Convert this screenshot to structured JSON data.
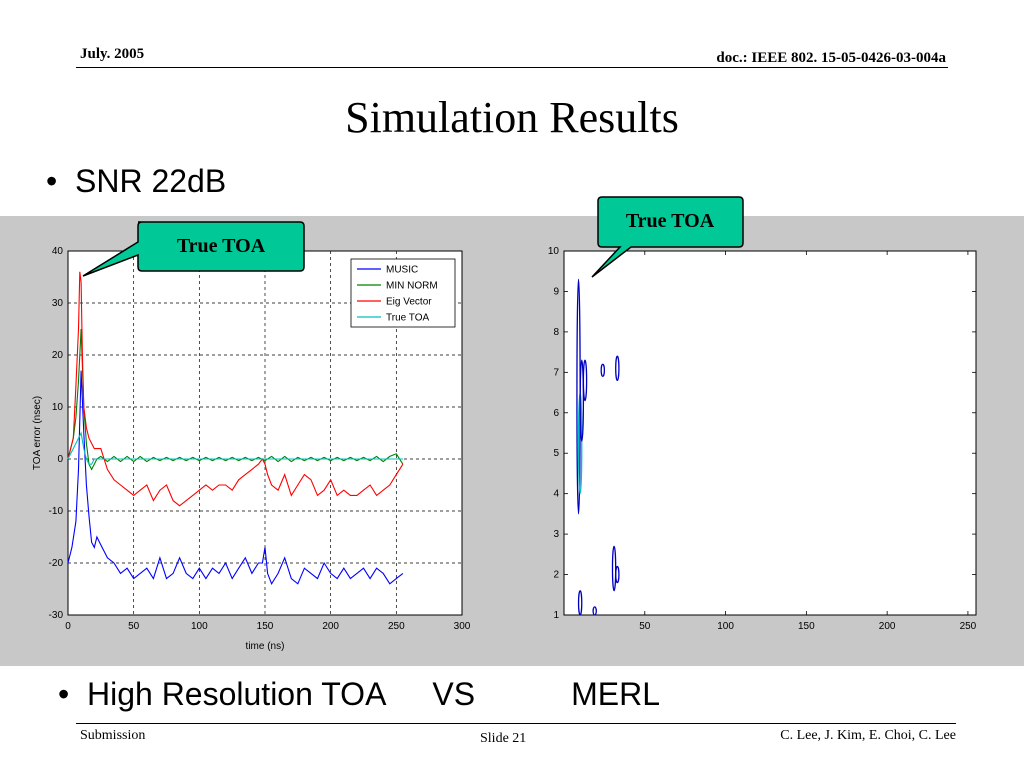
{
  "header": {
    "date": "July. 2005",
    "doc_id": "doc.: IEEE 802. 15-05-0426-03-004a"
  },
  "title": "Simulation Results",
  "bullets": [
    {
      "text": "SNR 22dB"
    },
    {
      "part1": "High Resolution TOA",
      "part2": "VS",
      "part3": "MERL"
    }
  ],
  "callouts": [
    {
      "text": "True TOA"
    },
    {
      "text": "True TOA"
    }
  ],
  "footer": {
    "left": "Submission",
    "center": "Slide 21",
    "right": "C. Lee, J. Kim, E. Choi, C. Lee"
  },
  "chart_data": [
    {
      "type": "line",
      "title": "",
      "xlabel": "time (ns)",
      "ylabel": "TOA error (nsec)",
      "xlim": [
        0,
        300
      ],
      "ylim": [
        -30,
        40
      ],
      "xticks": [
        0,
        50,
        100,
        150,
        200,
        250,
        300
      ],
      "yticks": [
        40,
        30,
        20,
        10,
        0,
        -10,
        -20,
        -30
      ],
      "grid": true,
      "legend_position": "top-right",
      "colors": {
        "MUSIC": "#0000ff",
        "MIN NORM": "#008000",
        "Eig Vector": "#ff0000",
        "True TOA": "#00bfbf"
      },
      "series": [
        {
          "name": "MUSIC",
          "x": [
            0,
            3,
            6,
            8,
            10,
            12,
            14,
            16,
            18,
            20,
            22,
            24,
            26,
            28,
            30,
            35,
            40,
            45,
            50,
            55,
            60,
            65,
            70,
            75,
            80,
            85,
            90,
            95,
            100,
            105,
            110,
            115,
            120,
            125,
            130,
            135,
            140,
            145,
            148,
            150,
            152,
            155,
            160,
            165,
            170,
            175,
            180,
            185,
            190,
            195,
            200,
            205,
            210,
            215,
            220,
            225,
            230,
            235,
            240,
            245,
            250,
            255
          ],
          "y": [
            -20,
            -17,
            -12,
            -2,
            17,
            5,
            -5,
            -11,
            -16,
            -17,
            -15,
            -16,
            -17,
            -18,
            -19,
            -20,
            -22,
            -21,
            -23,
            -22,
            -21,
            -23,
            -19,
            -23,
            -22,
            -19,
            -22,
            -23,
            -21,
            -23,
            -21,
            -22,
            -20,
            -23,
            -21,
            -19,
            -22,
            -20,
            -20,
            -17,
            -22,
            -24,
            -22,
            -19,
            -23,
            -24,
            -21,
            -22,
            -23,
            -20,
            -22,
            -23,
            -21,
            -23,
            -22,
            -21,
            -23,
            -21,
            -22,
            -24,
            -23,
            -22
          ]
        },
        {
          "name": "MIN NORM",
          "x": [
            0,
            2,
            4,
            6,
            8,
            10,
            12,
            14,
            16,
            18,
            20,
            22,
            25,
            30,
            35,
            40,
            45,
            50,
            55,
            60,
            65,
            70,
            75,
            80,
            85,
            90,
            95,
            100,
            105,
            110,
            115,
            120,
            125,
            130,
            135,
            140,
            145,
            150,
            155,
            160,
            165,
            170,
            175,
            180,
            185,
            190,
            195,
            200,
            205,
            210,
            215,
            220,
            225,
            230,
            235,
            240,
            245,
            250,
            255
          ],
          "y": [
            0,
            2,
            4,
            8,
            15,
            25,
            10,
            3,
            -1,
            -2,
            -1,
            0,
            0.5,
            -0.5,
            0.5,
            -0.5,
            0.5,
            -0.5,
            0.5,
            -0.5,
            0.3,
            -0.3,
            0.3,
            -0.3,
            0.3,
            -0.3,
            0.3,
            -0.3,
            0.3,
            -0.3,
            0.3,
            -0.3,
            0.3,
            -0.3,
            0.3,
            -0.3,
            0.3,
            -0.3,
            0.5,
            -0.5,
            0.5,
            -0.5,
            0.3,
            -0.3,
            0.3,
            -0.3,
            0.3,
            -0.3,
            0.3,
            -0.3,
            0.3,
            -0.3,
            0.3,
            -0.3,
            0.5,
            -0.5,
            0.5,
            1,
            -1
          ]
        },
        {
          "name": "Eig Vector",
          "x": [
            0,
            4,
            6,
            8,
            9,
            10,
            11,
            12,
            14,
            16,
            18,
            20,
            25,
            30,
            35,
            40,
            45,
            50,
            55,
            60,
            65,
            70,
            75,
            80,
            85,
            90,
            95,
            100,
            105,
            110,
            115,
            120,
            125,
            130,
            135,
            140,
            145,
            148,
            150,
            152,
            155,
            160,
            165,
            170,
            175,
            180,
            185,
            190,
            195,
            200,
            205,
            210,
            215,
            220,
            225,
            230,
            235,
            240,
            245,
            250,
            255
          ],
          "y": [
            0,
            4,
            14,
            25,
            36,
            34,
            20,
            10,
            6,
            4,
            3,
            2,
            2,
            -2,
            -4,
            -5,
            -6,
            -7,
            -6,
            -5,
            -8,
            -6,
            -5,
            -8,
            -9,
            -8,
            -7,
            -6,
            -5,
            -6,
            -5,
            -5,
            -6,
            -4,
            -3,
            -2,
            -1,
            0,
            -1,
            -3,
            -5,
            -6,
            -3,
            -7,
            -5,
            -3,
            -4,
            -7,
            -6,
            -4,
            -7,
            -6,
            -7,
            -7,
            -6,
            -5,
            -7,
            -6,
            -5,
            -3,
            -1
          ]
        },
        {
          "name": "True TOA",
          "x": [
            0,
            2,
            4,
            6,
            8,
            10,
            12,
            14,
            16,
            18,
            20,
            22,
            25,
            30,
            35,
            40,
            45,
            50,
            55,
            60,
            65,
            70,
            75,
            80,
            85,
            90,
            95,
            100,
            105,
            110,
            115,
            120,
            125,
            130,
            135,
            140,
            145,
            150,
            155,
            160,
            165,
            170,
            175,
            180,
            185,
            190,
            195,
            200,
            205,
            210,
            215,
            220,
            225,
            230,
            235,
            240,
            245,
            250,
            255
          ],
          "y": [
            0,
            1,
            2,
            3,
            4,
            5,
            2,
            0,
            -1,
            -1,
            0,
            0,
            0,
            0,
            0,
            0,
            0,
            0,
            0,
            0,
            0,
            0,
            0,
            0,
            0,
            0,
            0,
            0,
            0,
            0,
            0,
            0,
            0,
            0,
            0,
            0,
            0,
            0,
            0,
            0,
            0,
            0,
            0,
            0,
            0,
            0,
            0,
            0,
            0,
            0,
            0,
            0,
            0,
            0,
            0,
            0,
            0,
            0,
            0
          ]
        }
      ]
    },
    {
      "type": "scatter",
      "title": "",
      "xlim": [
        0,
        255
      ],
      "ylim": [
        1,
        10
      ],
      "xticks": [
        50,
        100,
        150,
        200,
        250
      ],
      "yticks": [
        10,
        9,
        8,
        7,
        6,
        5,
        4,
        3,
        2,
        1
      ],
      "grid": false,
      "blobs": [
        {
          "x": 9,
          "y_from": 3.5,
          "y_to": 9.3,
          "color": "#0000c0"
        },
        {
          "x": 10,
          "y_from": 4.0,
          "y_to": 6.5,
          "color": "#00c0c0"
        },
        {
          "x": 11,
          "y_from": 5.3,
          "y_to": 7.3,
          "color": "#0000c0"
        },
        {
          "x": 13,
          "y_from": 6.3,
          "y_to": 7.3,
          "color": "#0000c0"
        },
        {
          "x": 24,
          "y_from": 6.9,
          "y_to": 7.2,
          "color": "#0000c0"
        },
        {
          "x": 33,
          "y_from": 6.8,
          "y_to": 7.4,
          "color": "#0000c0"
        },
        {
          "x": 31,
          "y_from": 1.6,
          "y_to": 2.7,
          "color": "#0000c0"
        },
        {
          "x": 33,
          "y_from": 1.8,
          "y_to": 2.2,
          "color": "#0000c0"
        },
        {
          "x": 10,
          "y_from": 1.0,
          "y_to": 1.6,
          "color": "#0000c0"
        },
        {
          "x": 19,
          "y_from": 1.0,
          "y_to": 1.2,
          "color": "#0000c0"
        }
      ]
    }
  ]
}
